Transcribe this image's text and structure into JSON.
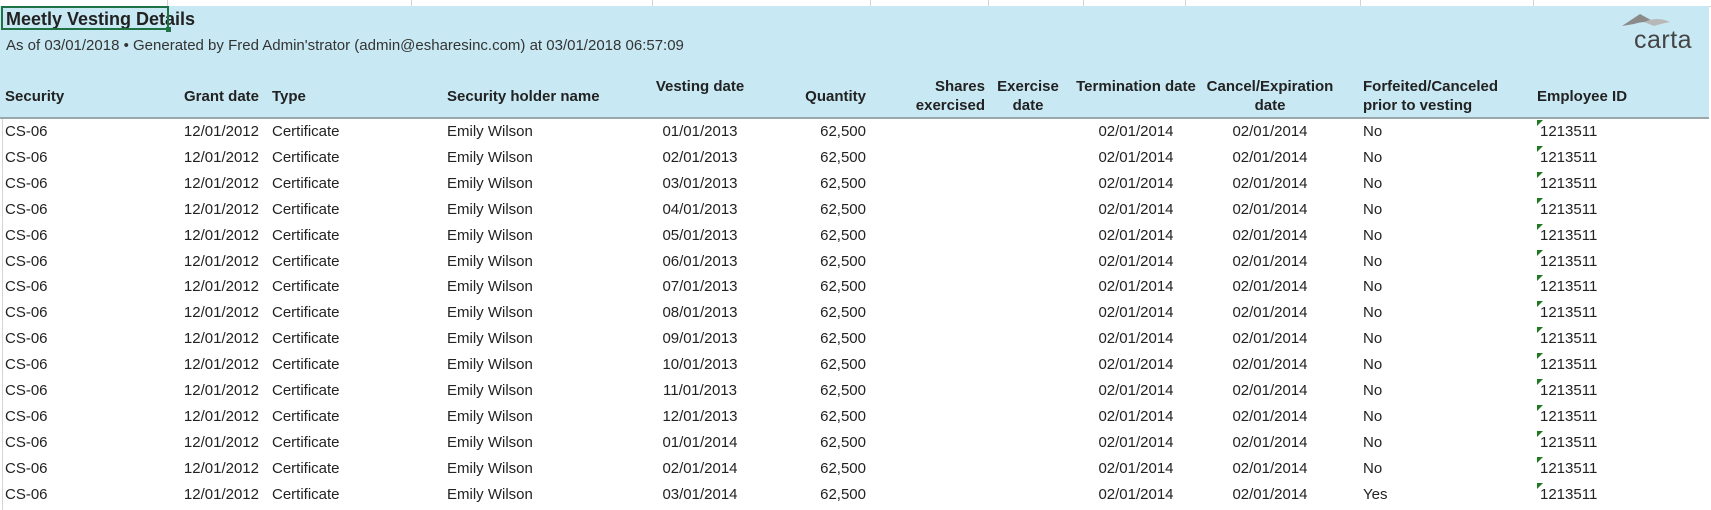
{
  "report": {
    "title": "Meetly Vesting Details",
    "subtitle": "As of 03/01/2018 • Generated by Fred Admin'strator (admin@esharesinc.com) at 03/01/2018 06:57:09",
    "logo_text": "carta"
  },
  "colors": {
    "header_bg": "#c8e9f3",
    "selection": "#1f7244",
    "comment_marker": "#1e7a1e"
  },
  "columns": [
    {
      "key": "security",
      "label": "Security"
    },
    {
      "key": "grant_date",
      "label": "Grant date"
    },
    {
      "key": "type",
      "label": "Type"
    },
    {
      "key": "holder",
      "label": "Security holder name"
    },
    {
      "key": "vesting_date",
      "label": "Vesting date"
    },
    {
      "key": "quantity",
      "label": "Quantity"
    },
    {
      "key": "shares_exercised",
      "label": "Shares exercised"
    },
    {
      "key": "exercise_date",
      "label": "Exercise date"
    },
    {
      "key": "termination_date",
      "label": "Termination date"
    },
    {
      "key": "cancel_date",
      "label": "Cancel/Expiration date"
    },
    {
      "key": "forfeited",
      "label": "Forfeited/Canceled prior to vesting"
    },
    {
      "key": "employee_id",
      "label": "Employee ID"
    }
  ],
  "rows": [
    {
      "security": "CS-06",
      "grant_date": "12/01/2012",
      "type": "Certificate",
      "holder": "Emily Wilson",
      "vesting_date": "01/01/2013",
      "quantity": "62,500",
      "shares_exercised": "",
      "exercise_date": "",
      "termination_date": "02/01/2014",
      "cancel_date": "02/01/2014",
      "forfeited": "No",
      "employee_id": "1213511"
    },
    {
      "security": "CS-06",
      "grant_date": "12/01/2012",
      "type": "Certificate",
      "holder": "Emily Wilson",
      "vesting_date": "02/01/2013",
      "quantity": "62,500",
      "shares_exercised": "",
      "exercise_date": "",
      "termination_date": "02/01/2014",
      "cancel_date": "02/01/2014",
      "forfeited": "No",
      "employee_id": "1213511"
    },
    {
      "security": "CS-06",
      "grant_date": "12/01/2012",
      "type": "Certificate",
      "holder": "Emily Wilson",
      "vesting_date": "03/01/2013",
      "quantity": "62,500",
      "shares_exercised": "",
      "exercise_date": "",
      "termination_date": "02/01/2014",
      "cancel_date": "02/01/2014",
      "forfeited": "No",
      "employee_id": "1213511"
    },
    {
      "security": "CS-06",
      "grant_date": "12/01/2012",
      "type": "Certificate",
      "holder": "Emily Wilson",
      "vesting_date": "04/01/2013",
      "quantity": "62,500",
      "shares_exercised": "",
      "exercise_date": "",
      "termination_date": "02/01/2014",
      "cancel_date": "02/01/2014",
      "forfeited": "No",
      "employee_id": "1213511"
    },
    {
      "security": "CS-06",
      "grant_date": "12/01/2012",
      "type": "Certificate",
      "holder": "Emily Wilson",
      "vesting_date": "05/01/2013",
      "quantity": "62,500",
      "shares_exercised": "",
      "exercise_date": "",
      "termination_date": "02/01/2014",
      "cancel_date": "02/01/2014",
      "forfeited": "No",
      "employee_id": "1213511"
    },
    {
      "security": "CS-06",
      "grant_date": "12/01/2012",
      "type": "Certificate",
      "holder": "Emily Wilson",
      "vesting_date": "06/01/2013",
      "quantity": "62,500",
      "shares_exercised": "",
      "exercise_date": "",
      "termination_date": "02/01/2014",
      "cancel_date": "02/01/2014",
      "forfeited": "No",
      "employee_id": "1213511"
    },
    {
      "security": "CS-06",
      "grant_date": "12/01/2012",
      "type": "Certificate",
      "holder": "Emily Wilson",
      "vesting_date": "07/01/2013",
      "quantity": "62,500",
      "shares_exercised": "",
      "exercise_date": "",
      "termination_date": "02/01/2014",
      "cancel_date": "02/01/2014",
      "forfeited": "No",
      "employee_id": "1213511"
    },
    {
      "security": "CS-06",
      "grant_date": "12/01/2012",
      "type": "Certificate",
      "holder": "Emily Wilson",
      "vesting_date": "08/01/2013",
      "quantity": "62,500",
      "shares_exercised": "",
      "exercise_date": "",
      "termination_date": "02/01/2014",
      "cancel_date": "02/01/2014",
      "forfeited": "No",
      "employee_id": "1213511"
    },
    {
      "security": "CS-06",
      "grant_date": "12/01/2012",
      "type": "Certificate",
      "holder": "Emily Wilson",
      "vesting_date": "09/01/2013",
      "quantity": "62,500",
      "shares_exercised": "",
      "exercise_date": "",
      "termination_date": "02/01/2014",
      "cancel_date": "02/01/2014",
      "forfeited": "No",
      "employee_id": "1213511"
    },
    {
      "security": "CS-06",
      "grant_date": "12/01/2012",
      "type": "Certificate",
      "holder": "Emily Wilson",
      "vesting_date": "10/01/2013",
      "quantity": "62,500",
      "shares_exercised": "",
      "exercise_date": "",
      "termination_date": "02/01/2014",
      "cancel_date": "02/01/2014",
      "forfeited": "No",
      "employee_id": "1213511"
    },
    {
      "security": "CS-06",
      "grant_date": "12/01/2012",
      "type": "Certificate",
      "holder": "Emily Wilson",
      "vesting_date": "11/01/2013",
      "quantity": "62,500",
      "shares_exercised": "",
      "exercise_date": "",
      "termination_date": "02/01/2014",
      "cancel_date": "02/01/2014",
      "forfeited": "No",
      "employee_id": "1213511"
    },
    {
      "security": "CS-06",
      "grant_date": "12/01/2012",
      "type": "Certificate",
      "holder": "Emily Wilson",
      "vesting_date": "12/01/2013",
      "quantity": "62,500",
      "shares_exercised": "",
      "exercise_date": "",
      "termination_date": "02/01/2014",
      "cancel_date": "02/01/2014",
      "forfeited": "No",
      "employee_id": "1213511"
    },
    {
      "security": "CS-06",
      "grant_date": "12/01/2012",
      "type": "Certificate",
      "holder": "Emily Wilson",
      "vesting_date": "01/01/2014",
      "quantity": "62,500",
      "shares_exercised": "",
      "exercise_date": "",
      "termination_date": "02/01/2014",
      "cancel_date": "02/01/2014",
      "forfeited": "No",
      "employee_id": "1213511"
    },
    {
      "security": "CS-06",
      "grant_date": "12/01/2012",
      "type": "Certificate",
      "holder": "Emily Wilson",
      "vesting_date": "02/01/2014",
      "quantity": "62,500",
      "shares_exercised": "",
      "exercise_date": "",
      "termination_date": "02/01/2014",
      "cancel_date": "02/01/2014",
      "forfeited": "No",
      "employee_id": "1213511"
    },
    {
      "security": "CS-06",
      "grant_date": "12/01/2012",
      "type": "Certificate",
      "holder": "Emily Wilson",
      "vesting_date": "03/01/2014",
      "quantity": "62,500",
      "shares_exercised": "",
      "exercise_date": "",
      "termination_date": "02/01/2014",
      "cancel_date": "02/01/2014",
      "forfeited": "Yes",
      "employee_id": "1213511"
    }
  ]
}
